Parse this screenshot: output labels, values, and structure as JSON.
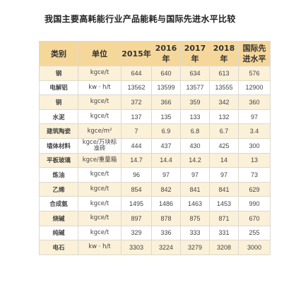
{
  "title": "我国主要高耗能行业产品能耗与国际先进水平比较",
  "headers": {
    "category": "类别",
    "unit": "单位",
    "y2015": "2015年",
    "y2016": "2016年",
    "y2017": "2017年",
    "y2018": "2018年",
    "intl": "国际先\n进水平"
  },
  "rows": [
    {
      "name": "钢",
      "unit": "kgce/t",
      "v": [
        "644",
        "640",
        "634",
        "613",
        "576"
      ]
    },
    {
      "name": "电解铝",
      "unit": "kw · h/t",
      "v": [
        "13562",
        "13599",
        "13577",
        "13555",
        "12900"
      ]
    },
    {
      "name": "铜",
      "unit": "kgce/t",
      "v": [
        "372",
        "366",
        "359",
        "342",
        "360"
      ]
    },
    {
      "name": "水泥",
      "unit": "kgce/t",
      "v": [
        "137",
        "135",
        "133",
        "132",
        "97"
      ]
    },
    {
      "name": "建筑陶瓷",
      "unit": "kgce/m²",
      "v": [
        "7",
        "6.9",
        "6.8",
        "6.7",
        "3.4"
      ]
    },
    {
      "name": "墙体材料",
      "unit": "kgce/万块标\n准砖",
      "v": [
        "444",
        "437",
        "430",
        "425",
        "300"
      ]
    },
    {
      "name": "平板玻璃",
      "unit": "kgce/重量箱",
      "v": [
        "14.7",
        "14.4",
        "14.2",
        "14",
        "13"
      ]
    },
    {
      "name": "炼油",
      "unit": "kgce/t",
      "v": [
        "96",
        "97",
        "97",
        "97",
        "73"
      ]
    },
    {
      "name": "乙烯",
      "unit": "kgce/t",
      "v": [
        "854",
        "842",
        "841",
        "841",
        "629"
      ]
    },
    {
      "name": "合成氨",
      "unit": "kgce/t",
      "v": [
        "1495",
        "1486",
        "1463",
        "1453",
        "990"
      ]
    },
    {
      "name": "烧碱",
      "unit": "kgce/t",
      "v": [
        "897",
        "878",
        "875",
        "871",
        "670"
      ]
    },
    {
      "name": "纯碱",
      "unit": "kgce/t",
      "v": [
        "329",
        "336",
        "333",
        "331",
        "255"
      ]
    },
    {
      "name": "电石",
      "unit": "kw · h/t",
      "v": [
        "3303",
        "3224",
        "3279",
        "3208",
        "3000"
      ]
    }
  ]
}
